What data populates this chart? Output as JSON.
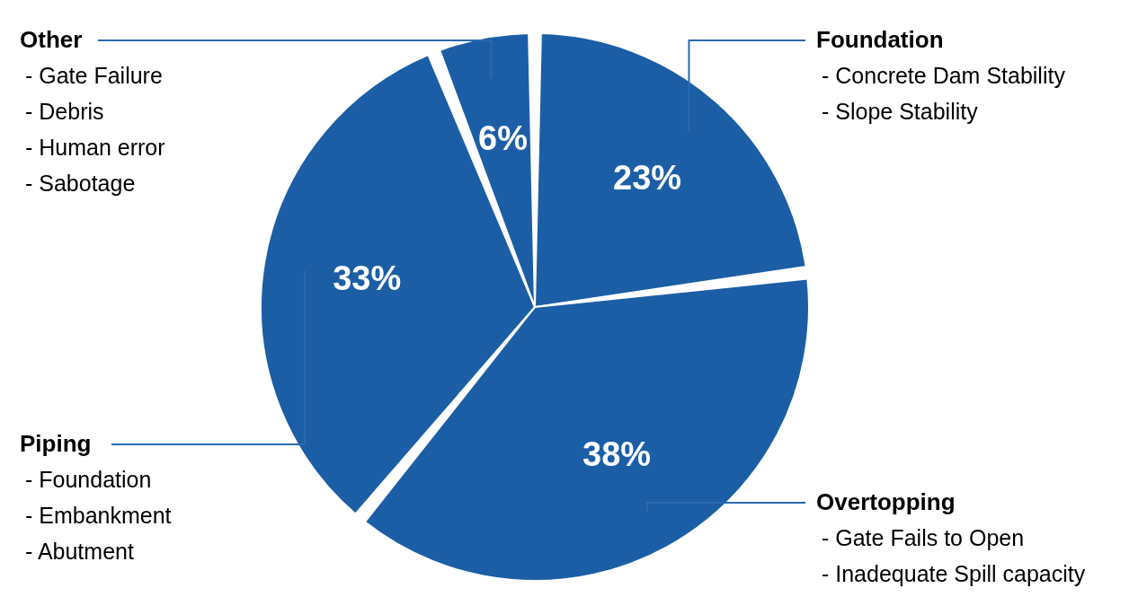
{
  "chart_data": {
    "type": "pie",
    "categories": [
      "Foundation",
      "Overtopping",
      "Piping",
      "Other"
    ],
    "values": [
      23,
      38,
      33,
      6
    ],
    "colors": [
      "#1b5ea6",
      "#1b5ea6",
      "#1b5ea6",
      "#1b5ea6"
    ],
    "value_labels": [
      "23%",
      "38%",
      "33%",
      "6%"
    ],
    "annotations": [
      {
        "text": "- Concrete Dam Stability",
        "x": "Foundation"
      },
      {
        "text": "- Slope Stability",
        "x": "Foundation"
      },
      {
        "text": "- Gate Fails to Open",
        "x": "Overtopping"
      },
      {
        "text": "- Inadequate Spill capacity",
        "x": "Overtopping"
      },
      {
        "text": "- Foundation",
        "x": "Piping"
      },
      {
        "text": "- Embankment",
        "x": "Piping"
      },
      {
        "text": "- Abutment",
        "x": "Piping"
      },
      {
        "text": "- Gate Failure",
        "x": "Other"
      },
      {
        "text": "- Debris",
        "x": "Other"
      },
      {
        "text": "- Human error",
        "x": "Other"
      },
      {
        "text": "- Sabotage",
        "x": "Other"
      }
    ]
  }
}
